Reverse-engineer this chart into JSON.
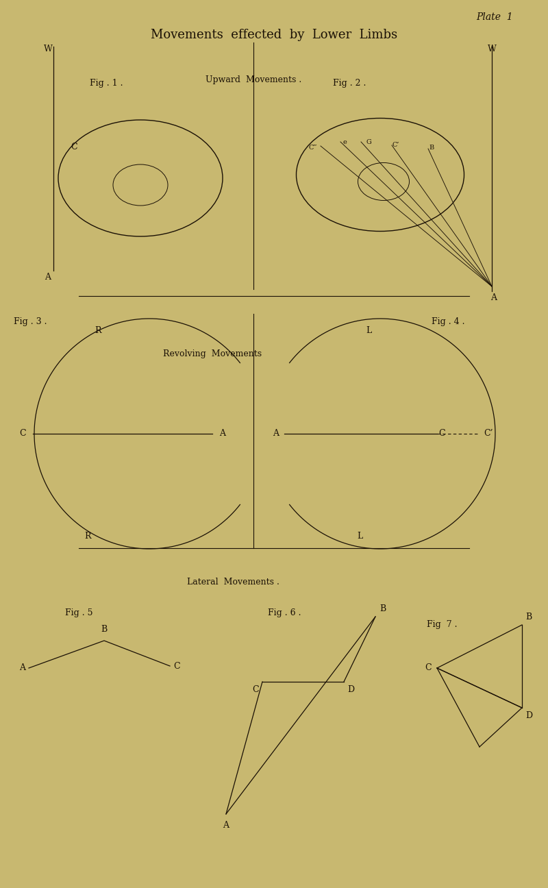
{
  "bg_color": "#c8b870",
  "ink_color": "#1a1005",
  "title": "Movements  effected  by  Lower  Limbs",
  "plate_label": "Plate  1",
  "upward_label": "Upward  Movements .",
  "revolving_label": "Revolving  Movements",
  "lateral_label": "Lateral  Movements .",
  "fig1_label": "Fig . 1 .",
  "fig2_label": "Fig . 2 .",
  "fig3_label": "Fig . 3 .",
  "fig4_label": "Fig . 4 .",
  "fig5_label": "Fig . 5",
  "fig6_label": "Fig . 6 .",
  "fig7_label": "Fig  7 .",
  "font_size_title": 13,
  "font_size_label": 9,
  "font_size_fig": 9
}
